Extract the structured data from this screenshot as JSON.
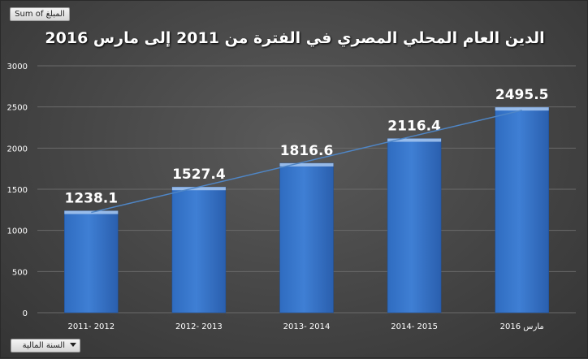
{
  "pivot": {
    "values_field": "Sum of المبلغ",
    "axis_field": "السنة المالية"
  },
  "colors": {
    "bar": "#3f7fd4",
    "bar_top": "#a8c8f0",
    "trendline": "#4f86c6",
    "gridline": "#6a6a6a",
    "text": "#ffffff"
  },
  "chart_data": {
    "type": "bar",
    "title": "الدين العام المحلي المصري في الفترة من 2011 إلى مارس 2016",
    "categories": [
      "2011- 2012",
      "2012- 2013",
      "2013- 2014",
      "2014- 2015",
      "مارس 2016"
    ],
    "values": [
      1238.1,
      1527.4,
      1816.6,
      2116.4,
      2495.5
    ],
    "data_labels": [
      "1238.1",
      "1527.4",
      "1816.6",
      "2116.4",
      "2495.5"
    ],
    "ylim": [
      0,
      3000
    ],
    "yticks": [
      "0",
      "500",
      "1000",
      "1500",
      "2000",
      "2500",
      "3000"
    ],
    "trendline": "linear",
    "grid": true,
    "legend": "none"
  }
}
